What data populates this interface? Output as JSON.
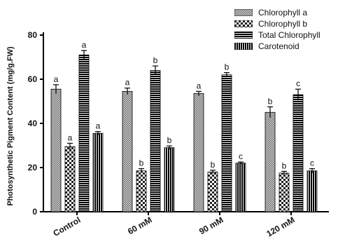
{
  "chart_data": {
    "type": "bar",
    "ylabel": "Photosynthetic Pigment Content (mg/g.FW)",
    "xlabel": "",
    "ylim": [
      0,
      80
    ],
    "yticks": [
      0,
      20,
      40,
      60,
      80
    ],
    "categories": [
      "Control",
      "60 mM",
      "90 mM",
      "120 mM"
    ],
    "legend_position": "top-right",
    "series": [
      {
        "name": "Chlorophyll a",
        "pattern": "dots",
        "values": [
          55.5,
          54.5,
          53.5,
          45
        ],
        "errors": [
          2,
          1.5,
          1,
          2.5
        ],
        "letters": [
          "a",
          "a",
          "a",
          "b"
        ]
      },
      {
        "name": "Chlorophyll b",
        "pattern": "checker",
        "values": [
          29.5,
          18.5,
          18,
          17.5
        ],
        "errors": [
          1.5,
          1,
          0.8,
          0.8
        ],
        "letters": [
          "a",
          "b",
          "b",
          "b"
        ]
      },
      {
        "name": "Total Chlorophyll",
        "pattern": "hstripes",
        "values": [
          71,
          64,
          62,
          53
        ],
        "errors": [
          2,
          2,
          1,
          2.5
        ],
        "letters": [
          "a",
          "b",
          "b",
          "c"
        ]
      },
      {
        "name": "Carotenoid",
        "pattern": "vstripes",
        "values": [
          35.5,
          29,
          22,
          18.5
        ],
        "errors": [
          0.8,
          0.8,
          0.5,
          1
        ],
        "letters": [
          "a",
          "b",
          "c",
          "c"
        ]
      }
    ]
  }
}
